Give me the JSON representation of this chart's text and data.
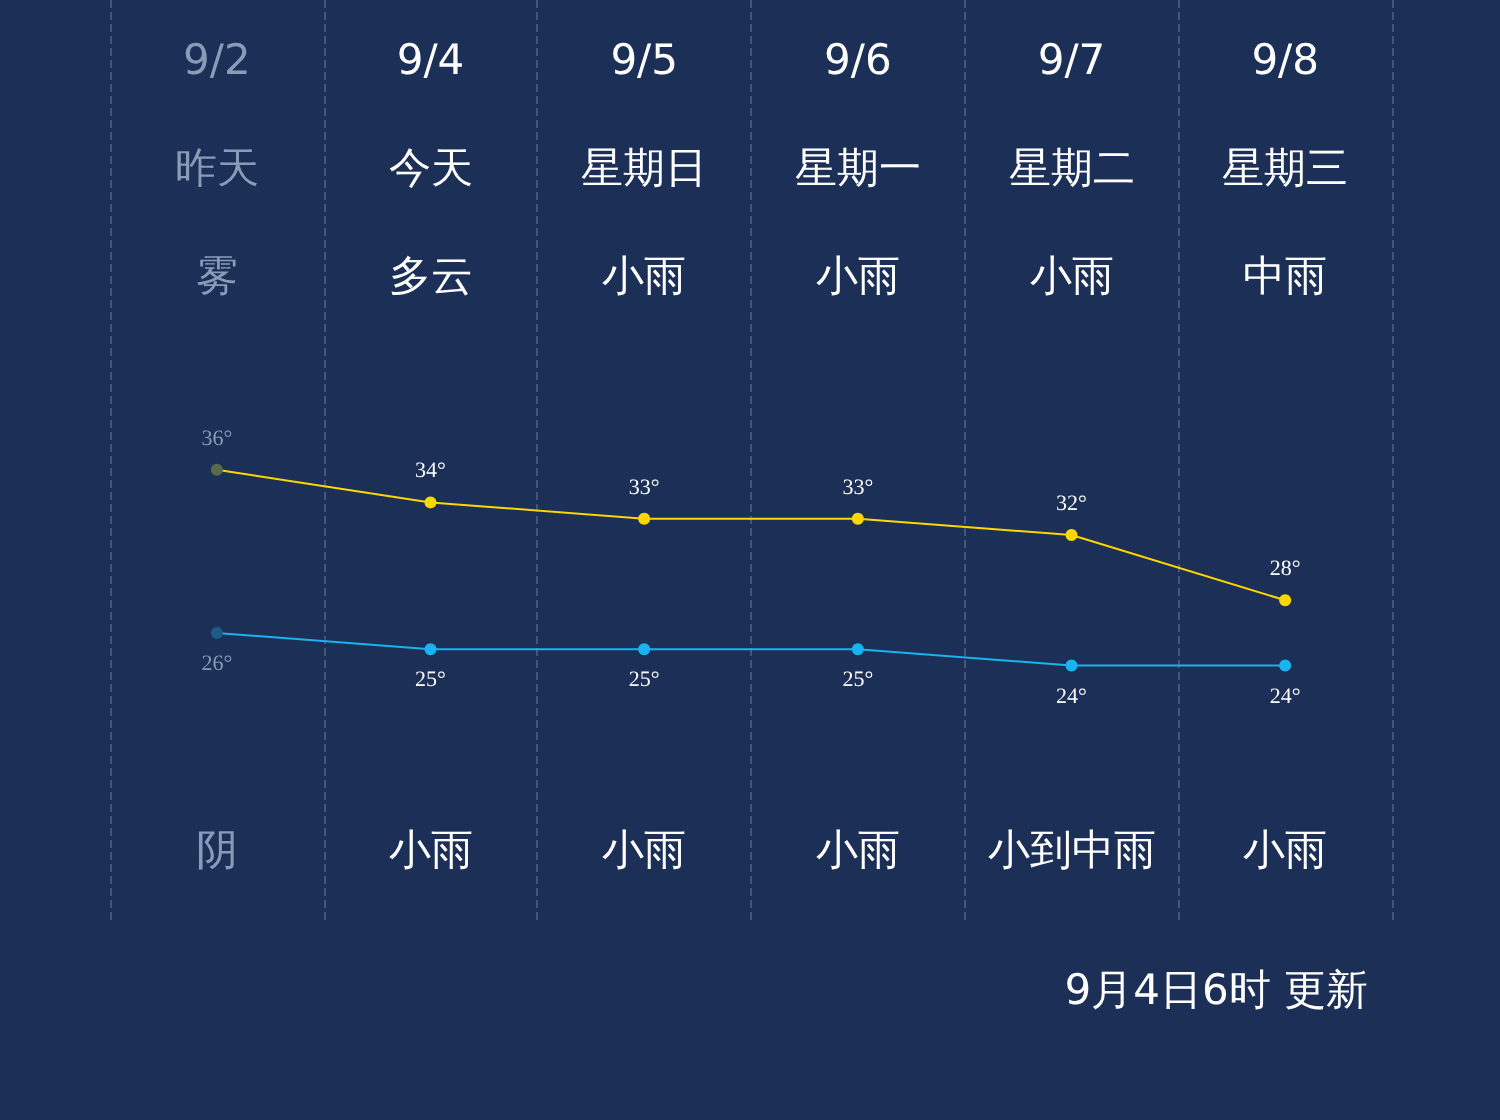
{
  "chart_data": {
    "type": "line",
    "categories": [
      "9/2",
      "9/4",
      "9/5",
      "9/6",
      "9/7",
      "9/8"
    ],
    "series": [
      {
        "color": "#ffd700",
        "colors": [
          "#556b4a",
          "#ffd700",
          "#ffd700",
          "#ffd700",
          "#ffd700",
          "#ffd700"
        ],
        "values": [
          36,
          34,
          33,
          33,
          32,
          28
        ],
        "value_labels": [
          "36°",
          "34°",
          "33°",
          "33°",
          "32°",
          "28°"
        ]
      },
      {
        "color": "#18b4f0",
        "colors": [
          "#1e5a86",
          "#18b4f0",
          "#18b4f0",
          "#18b4f0",
          "#18b4f0",
          "#18b4f0"
        ],
        "values": [
          26,
          25,
          25,
          25,
          24,
          24
        ],
        "value_labels": [
          "26°",
          "25°",
          "25°",
          "25°",
          "24°",
          "24°"
        ]
      }
    ],
    "annotations": [
      "昨天",
      "今天",
      "星期日",
      "星期一",
      "星期二",
      "星期三",
      "雾",
      "多云",
      "小雨",
      "小雨",
      "小雨",
      "中雨",
      "阴",
      "小雨",
      "小雨",
      "小雨",
      "小到中雨",
      "小雨",
      "9月4日6时 更新"
    ],
    "grid": "x",
    "marker": "circle",
    "line_style": "solid"
  }
}
